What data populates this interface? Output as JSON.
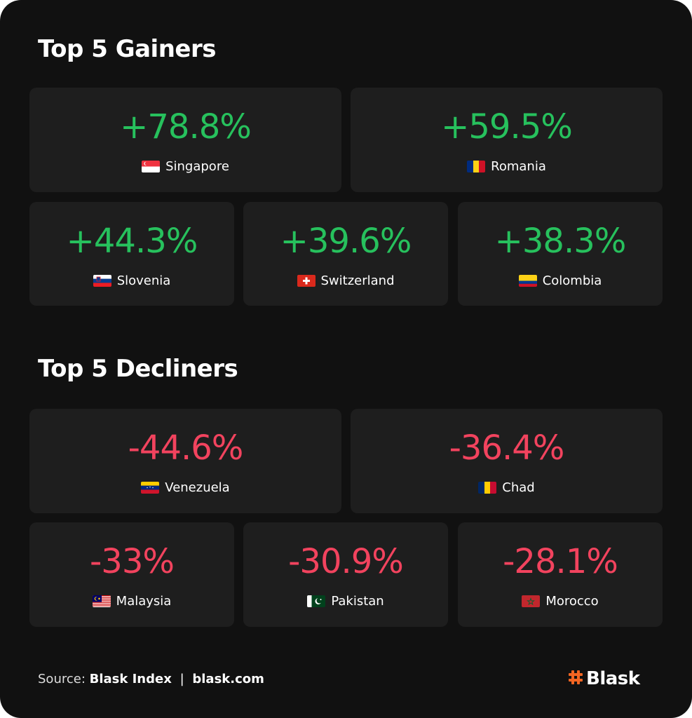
{
  "gainers": {
    "title": "Top 5 Gainers",
    "items": [
      {
        "value": "+78.8%",
        "country": "Singapore",
        "flag": "singapore-flag-icon"
      },
      {
        "value": "+59.5%",
        "country": "Romania",
        "flag": "romania-flag-icon"
      },
      {
        "value": "+44.3%",
        "country": "Slovenia",
        "flag": "slovenia-flag-icon"
      },
      {
        "value": "+39.6%",
        "country": "Switzerland",
        "flag": "switzerland-flag-icon"
      },
      {
        "value": "+38.3%",
        "country": "Colombia",
        "flag": "colombia-flag-icon"
      }
    ]
  },
  "decliners": {
    "title": "Top 5 Decliners",
    "items": [
      {
        "value": "-44.6%",
        "country": "Venezuela",
        "flag": "venezuela-flag-icon"
      },
      {
        "value": "-36.4%",
        "country": "Chad",
        "flag": "chad-flag-icon"
      },
      {
        "value": "-33%",
        "country": "Malaysia",
        "flag": "malaysia-flag-icon"
      },
      {
        "value": "-30.9%",
        "country": "Pakistan",
        "flag": "pakistan-flag-icon"
      },
      {
        "value": "-28.1%",
        "country": "Morocco",
        "flag": "morocco-flag-icon"
      }
    ]
  },
  "footer": {
    "source_label": "Source:",
    "source_name": "Blask Index",
    "separator": "|",
    "source_url": "blask.com",
    "brand": "Blask",
    "brand_icon": "hash-logo-icon"
  },
  "colors": {
    "positive": "#27c15d",
    "negative": "#f2435e",
    "brand_accent": "#f26522",
    "card_bg": "#1e1e1e",
    "panel_bg": "#111111"
  }
}
